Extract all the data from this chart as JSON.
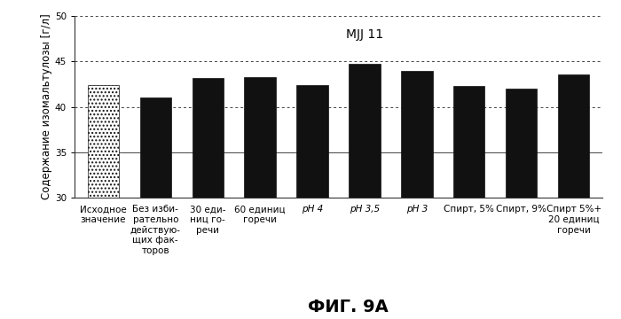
{
  "title": "MJJ 11",
  "ylabel": "Содержание изомальтулозы [г/л]",
  "xlabel": "ФИГ. 9А",
  "categories": [
    "Исходное\nзначение",
    "Без изби-\nрательно\nдействую-\nщих фак-\nторов",
    "30 еди-\nниц го-\nречи",
    "60 единиц\nгоречи",
    "pH 4",
    "pH 3,5",
    "pH 3",
    "Спирт, 5%",
    "Спирт, 9%",
    "Спирт 5%+\n20 единиц\nгоречи"
  ],
  "italic_labels": [
    false,
    false,
    false,
    false,
    true,
    true,
    true,
    false,
    false,
    false
  ],
  "values": [
    42.4,
    41.0,
    43.2,
    43.3,
    42.4,
    44.7,
    44.0,
    42.3,
    42.0,
    43.6
  ],
  "bar_color": "#111111",
  "first_bar_hatch": true,
  "ylim": [
    30,
    50
  ],
  "yticks": [
    30,
    35,
    40,
    45,
    50
  ],
  "bg_color": "#ffffff",
  "title_fontsize": 10,
  "ylabel_fontsize": 8.5,
  "xlabel_fontsize": 14,
  "tick_fontsize": 7.5,
  "bar_bottom": 30
}
